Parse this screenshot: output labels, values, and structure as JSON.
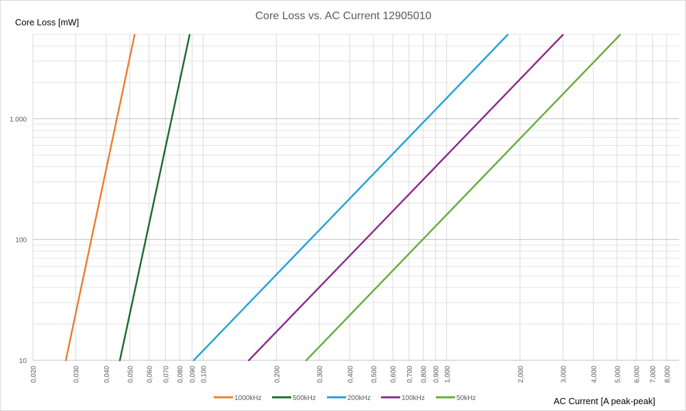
{
  "chart_data": {
    "type": "line",
    "title": "Core Loss vs. AC Current 12905010",
    "xlabel": "AC Current [A peak-peak]",
    "ylabel": "Core Loss [mW]",
    "x_scale": "log",
    "y_scale": "log",
    "xlim": [
      0.02,
      9
    ],
    "ylim": [
      10,
      5000
    ],
    "x_ticks": [
      0.02,
      0.03,
      0.04,
      0.05,
      0.06,
      0.07,
      0.08,
      0.09,
      0.1,
      0.2,
      0.3,
      0.4,
      0.5,
      0.6,
      0.7,
      0.8,
      0.9,
      1,
      2,
      3,
      4,
      5,
      6,
      7,
      8
    ],
    "x_tick_labels": [
      "0,020",
      "0,030",
      "0,040",
      "0,050",
      "0,060",
      "0,070",
      "0,080",
      "0,090",
      "0,100",
      "0,200",
      "0,300",
      "0,400",
      "0,500",
      "0,600",
      "0,700",
      "0,800",
      "0,900",
      "1,000",
      "2,000",
      "3,000",
      "4,000",
      "5,000",
      "6,000",
      "7,000",
      "8,000"
    ],
    "y_ticks": [
      10,
      100,
      1000
    ],
    "y_tick_labels": [
      "10",
      "100",
      "1.000"
    ],
    "grid": true,
    "legend_position": "bottom",
    "series": [
      {
        "name": "1000kHz",
        "color": "#ED7D31",
        "x": [
          0.0273,
          0.0523
        ],
        "y": [
          10,
          4950
        ]
      },
      {
        "name": "500kHz",
        "color": "#1E6B2E",
        "x": [
          0.0455,
          0.088
        ],
        "y": [
          10,
          4950
        ]
      },
      {
        "name": "200kHz",
        "color": "#1FA3D6",
        "x": [
          0.0915,
          1.78
        ],
        "y": [
          10,
          4950
        ]
      },
      {
        "name": "100kHz",
        "color": "#8E2A8E",
        "x": [
          0.154,
          3.0
        ],
        "y": [
          10,
          4950
        ]
      },
      {
        "name": "50kHz",
        "color": "#6AAB3A",
        "x": [
          0.265,
          5.15
        ],
        "y": [
          10,
          4950
        ]
      }
    ]
  }
}
